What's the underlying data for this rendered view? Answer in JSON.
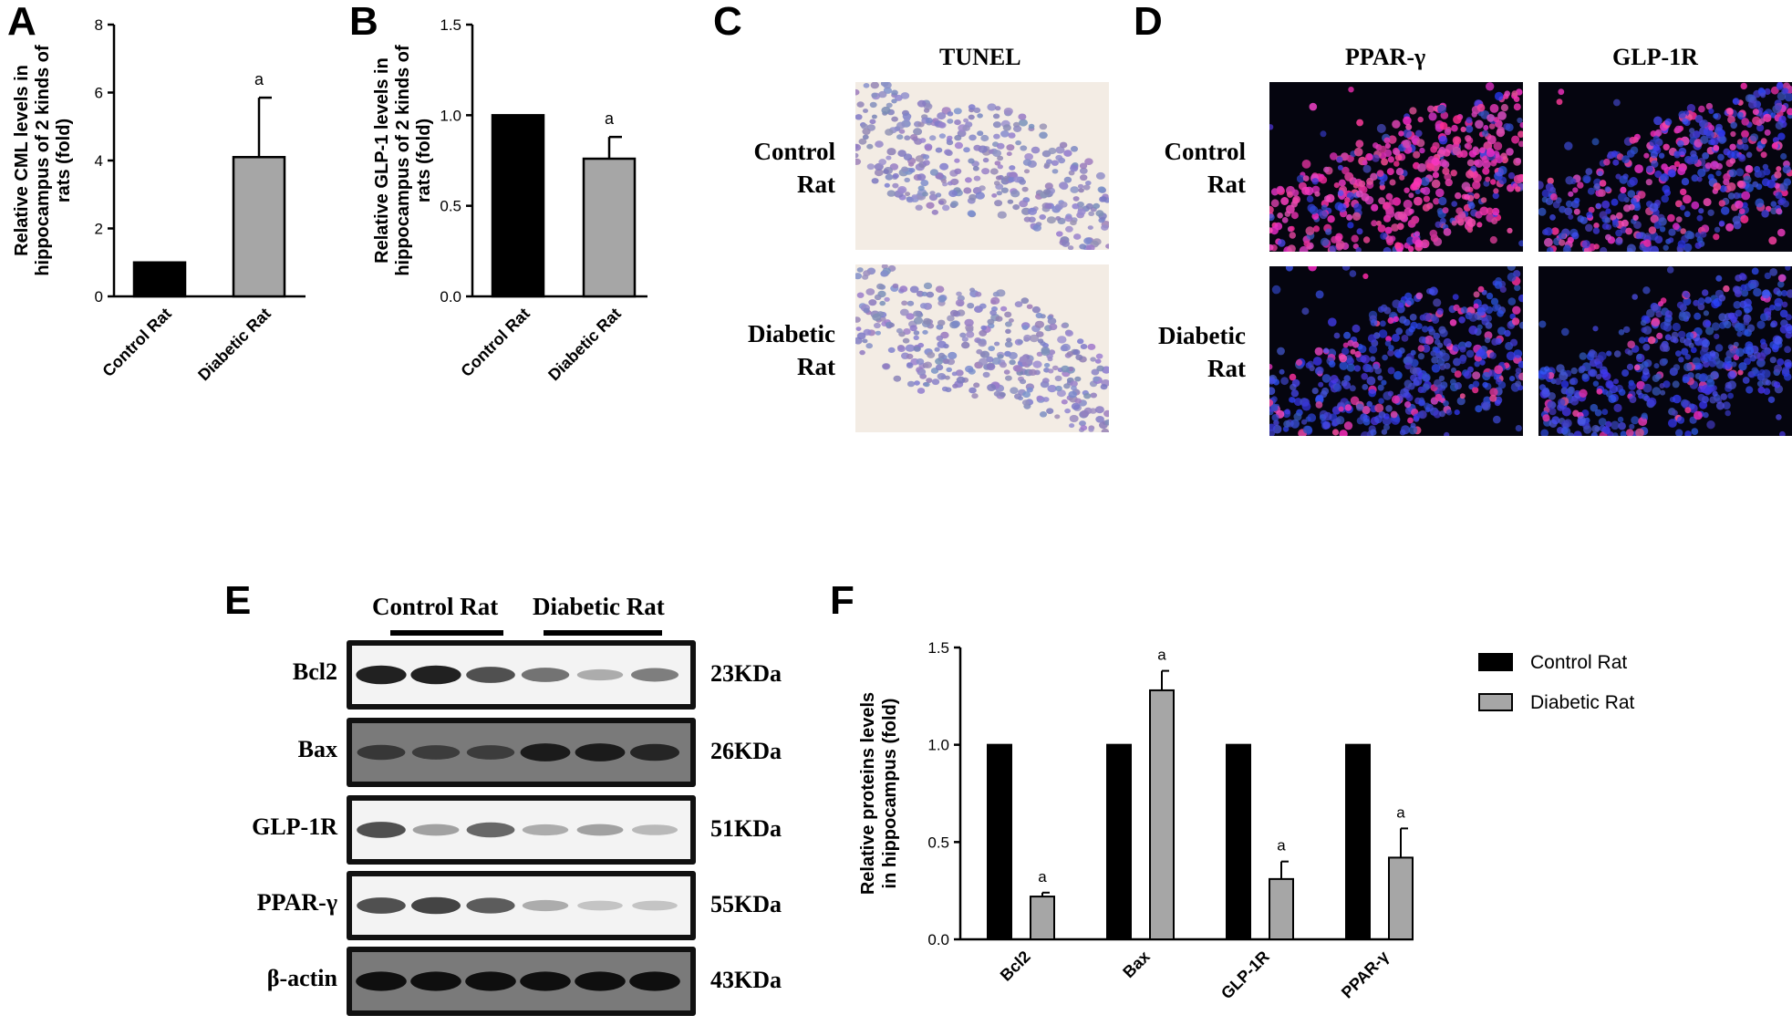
{
  "panels": {
    "A": {
      "letter": "A"
    },
    "B": {
      "letter": "B"
    },
    "C": {
      "letter": "C",
      "column_title": "TUNEL",
      "row_labels": [
        [
          "Control",
          "Rat"
        ],
        [
          "Diabetic",
          "Rat"
        ]
      ]
    },
    "D": {
      "letter": "D",
      "column_titles": [
        "PPAR-γ",
        "GLP-1R"
      ],
      "row_labels": [
        [
          "Control",
          "Rat"
        ],
        [
          "Diabetic",
          "Rat"
        ]
      ]
    },
    "E": {
      "letter": "E",
      "group_labels": [
        "Control Rat",
        "Diabetic Rat"
      ],
      "rows": [
        {
          "label": "Bcl2",
          "size": "23KDa"
        },
        {
          "label": "Bax",
          "size": "26KDa"
        },
        {
          "label": "GLP-1R",
          "size": "51KDa"
        },
        {
          "label": "PPAR-γ",
          "size": "55KDa"
        },
        {
          "label": "β-actin",
          "size": "43KDa"
        }
      ]
    },
    "F": {
      "letter": "F"
    }
  },
  "colors": {
    "control": "#000000",
    "diabetic": "#a6a6a6",
    "tunel_bg": "#f3ece4",
    "nuclei_blue": "#2a34d6",
    "pparg_red": "#e0208a",
    "blot_band": "#0a0a0a"
  },
  "chart_data": [
    {
      "panel": "A",
      "type": "bar",
      "categories": [
        "Control Rat",
        "Diabetic Rat"
      ],
      "values": [
        1.0,
        4.1
      ],
      "errors": [
        0,
        1.75
      ],
      "annotations": [
        "",
        "a"
      ],
      "ylabel": "Relative CML levels in hippocampus of 2 kinds of rats (fold)",
      "ylim": [
        0,
        8
      ],
      "yticks": [
        "0",
        "2",
        "4",
        "6",
        "8"
      ]
    },
    {
      "panel": "B",
      "type": "bar",
      "categories": [
        "Control Rat",
        "Diabetic Rat"
      ],
      "values": [
        1.0,
        0.76
      ],
      "errors": [
        0,
        0.12
      ],
      "annotations": [
        "",
        "a"
      ],
      "ylabel": "Relative GLP-1 levels in hippocampus of 2 kinds of rats (fold)",
      "ylim": [
        0,
        1.5
      ],
      "yticks": [
        "0.0",
        "0.5",
        "1.0",
        "1.5"
      ]
    },
    {
      "panel": "F",
      "type": "bar",
      "categories": [
        "Bcl2",
        "Bax",
        "GLP-1R",
        "PPAR-γ"
      ],
      "series": [
        {
          "name": "Control Rat",
          "values": [
            1.0,
            1.0,
            1.0,
            1.0
          ],
          "errors": [
            0,
            0,
            0,
            0
          ]
        },
        {
          "name": "Diabetic Rat",
          "values": [
            0.22,
            1.28,
            0.31,
            0.42
          ],
          "errors": [
            0.02,
            0.1,
            0.09,
            0.15
          ]
        }
      ],
      "annotations": [
        "a",
        "a",
        "a",
        "a"
      ],
      "ylabel": "Relative proteins levels in hippocampus (fold)",
      "ylim": [
        0,
        1.5
      ],
      "yticks": [
        "0.0",
        "0.5",
        "1.0",
        "1.5"
      ],
      "legend": "top-right"
    }
  ]
}
